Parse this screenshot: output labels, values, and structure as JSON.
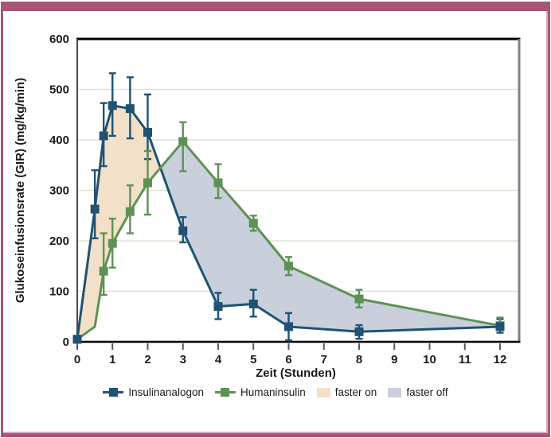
{
  "frame": {
    "border_color": "#a85577",
    "inner_line_color": "#d9a9c0",
    "background": "#ffffff"
  },
  "chart_data": {
    "type": "line",
    "title": "",
    "xlabel": "Zeit (Stunden)",
    "ylabel": "Glukoseinfusionsrate (GIR) (mg/kg/min)",
    "xlim": [
      0,
      12.55
    ],
    "ylim": [
      0,
      600
    ],
    "grid": "horizontal",
    "grid_color": "#dfe2d2",
    "x_ticks": [
      0,
      1,
      2,
      3,
      4,
      5,
      6,
      7,
      8,
      9,
      10,
      11,
      12
    ],
    "y_ticks": [
      0,
      100,
      200,
      300,
      400,
      500,
      600
    ],
    "x": [
      0,
      0.5,
      0.75,
      1,
      1.5,
      2,
      3,
      4,
      5,
      6,
      8,
      12
    ],
    "series": [
      {
        "name": "Insulinanalogon",
        "color": "#1f5273",
        "marker": "square",
        "values": [
          5,
          263,
          408,
          468,
          462,
          415,
          220,
          70,
          75,
          30,
          20,
          30
        ],
        "err_up": [
          0,
          77,
          65,
          64,
          62,
          75,
          27,
          27,
          28,
          27,
          13,
          15
        ],
        "err_dn": [
          0,
          58,
          60,
          60,
          59,
          53,
          23,
          25,
          25,
          27,
          14,
          12
        ],
        "marker_skip": []
      },
      {
        "name": "Humaninsulin",
        "color": "#5d9255",
        "marker": "square",
        "values": [
          5,
          30,
          140,
          195,
          258,
          315,
          397,
          315,
          235,
          150,
          85,
          32
        ],
        "err_up": [
          0,
          0,
          75,
          49,
          52,
          63,
          38,
          37,
          15,
          18,
          18,
          16
        ],
        "err_dn": [
          0,
          0,
          47,
          48,
          43,
          63,
          59,
          30,
          15,
          18,
          17,
          0
        ],
        "marker_skip": [
          1
        ]
      }
    ],
    "regions": [
      {
        "name": "faster on",
        "color": "#f3e0c8",
        "rule": "series0_above_series1"
      },
      {
        "name": "faster off",
        "color": "#c9cfdb",
        "rule": "series1_above_series0"
      }
    ],
    "legend_position": "bottom",
    "axis_colors": {
      "top": "#000000",
      "right": "#808080",
      "left": "#4a4a4a",
      "bottom": "#000000",
      "tick": "#595959"
    }
  },
  "legend": {
    "items": [
      {
        "label": "Insulinanalogon",
        "type": "line-square",
        "color": "#1f5273"
      },
      {
        "label": "Humaninsulin",
        "type": "line-square",
        "color": "#5d9255"
      },
      {
        "label": "faster on",
        "type": "swatch",
        "color": "#f3e0c8"
      },
      {
        "label": "faster off",
        "type": "swatch",
        "color": "#c9cfdb"
      }
    ]
  }
}
